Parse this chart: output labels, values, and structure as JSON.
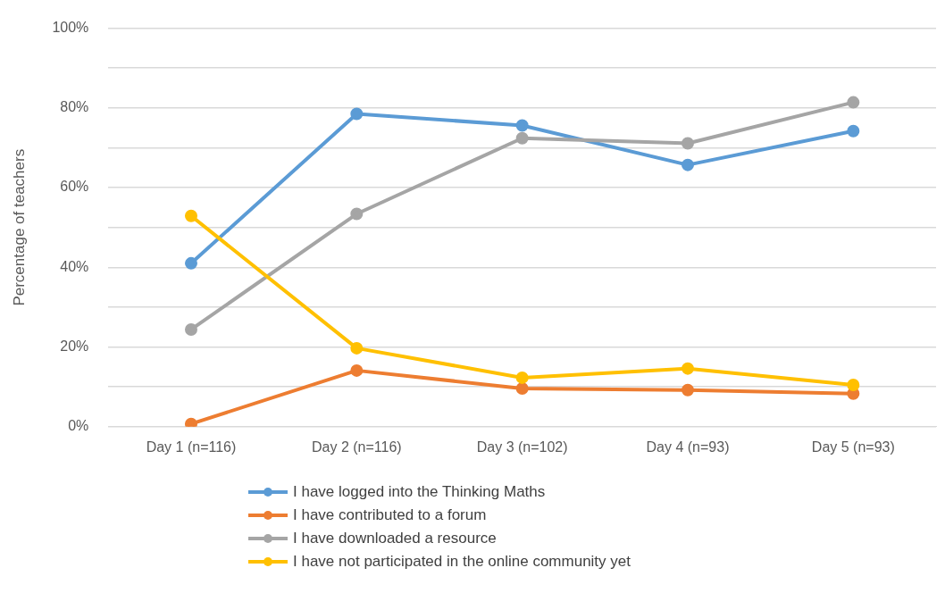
{
  "chart_data": {
    "type": "line",
    "ylabel": "Percentage of teachers",
    "categories": [
      "Day 1 (n=116)",
      "Day 2 (n=116)",
      "Day 3 (n=102)",
      "Day 4 (n=93)",
      "Day 5 (n=93)"
    ],
    "series": [
      {
        "name": "I have logged into the Thinking Maths",
        "color": "#5b9bd5",
        "values": [
          41,
          78.5,
          75.6,
          65.7,
          74.2
        ]
      },
      {
        "name": "I have contributed to a forum",
        "color": "#ed7d31",
        "values": [
          0.7,
          14.1,
          9.6,
          9.2,
          8.3
        ]
      },
      {
        "name": "I have downloaded a resource",
        "color": "#a5a5a5",
        "values": [
          24.4,
          53.4,
          72.4,
          71.1,
          81.4
        ]
      },
      {
        "name": "I have not participated in the online community yet",
        "color": "#ffc000",
        "values": [
          52.9,
          19.7,
          12.3,
          14.6,
          10.5
        ]
      }
    ],
    "ylim": [
      0,
      100
    ],
    "yticks": [
      {
        "value": 0,
        "label": "0%"
      },
      {
        "value": 10,
        "label": null
      },
      {
        "value": 20,
        "label": "20%"
      },
      {
        "value": 30,
        "label": null
      },
      {
        "value": 40,
        "label": "40%"
      },
      {
        "value": 50,
        "label": null
      },
      {
        "value": 60,
        "label": "60%"
      },
      {
        "value": 70,
        "label": null
      },
      {
        "value": 80,
        "label": "80%"
      },
      {
        "value": 90,
        "label": null
      },
      {
        "value": 100,
        "label": "100%"
      }
    ],
    "grid": "y",
    "legend": "bottom",
    "marker": "circle",
    "line_style": "solid"
  }
}
